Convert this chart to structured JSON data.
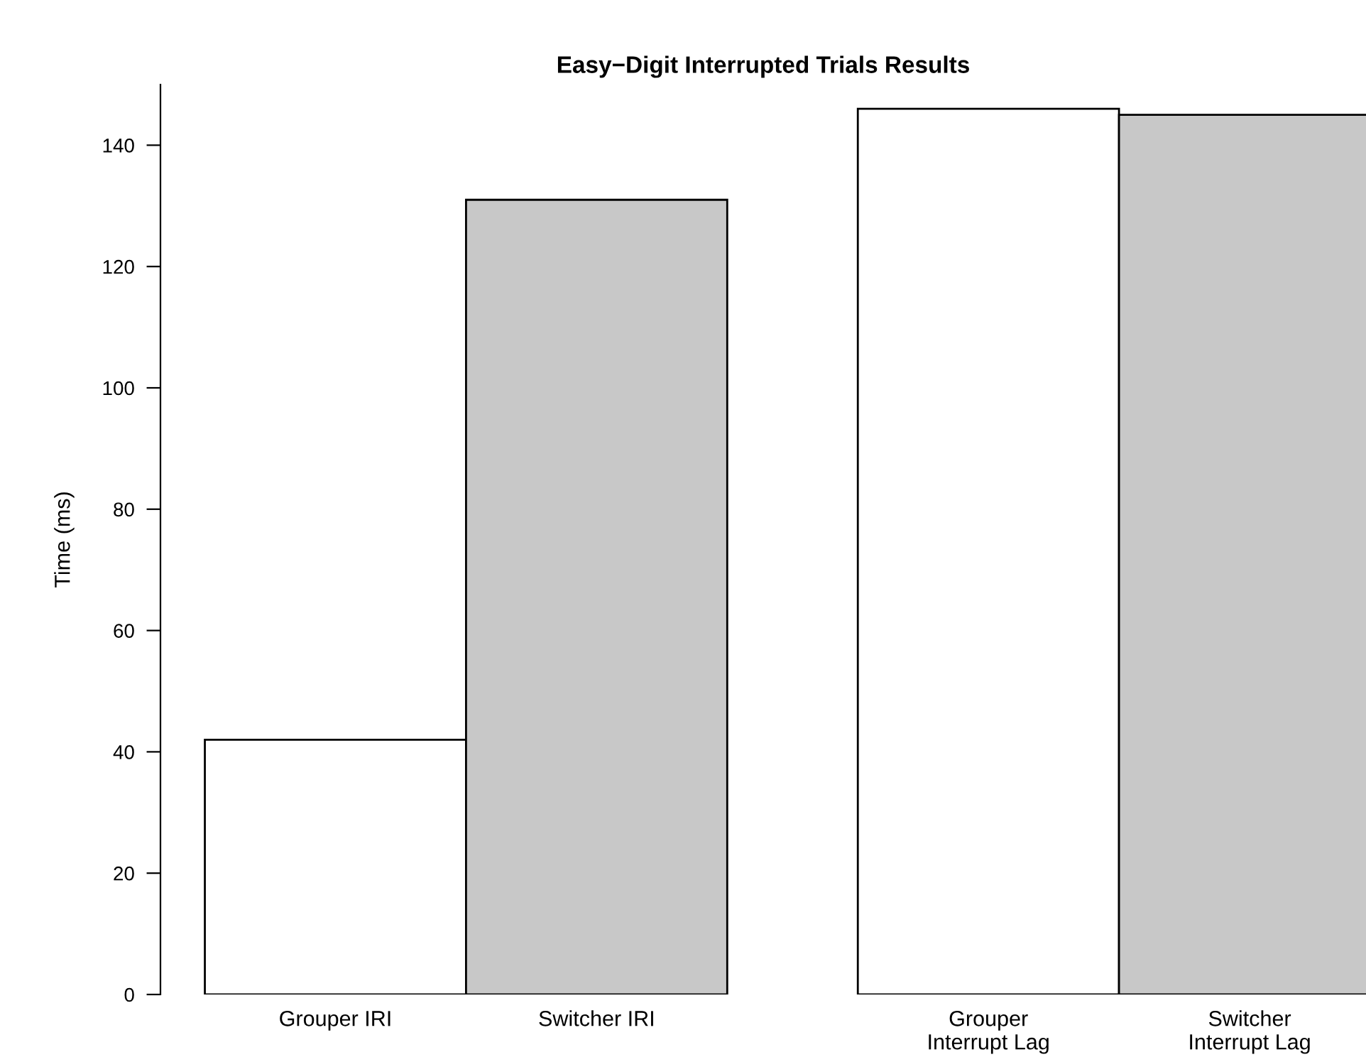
{
  "chart_data": {
    "type": "bar",
    "title": "Easy−Digit Interrupted Trials Results",
    "ylabel": "Time (ms)",
    "categories": [
      "Grouper IRI",
      "Switcher IRI",
      "Grouper\nInterrupt Lag",
      "Switcher\nInterrupt Lag"
    ],
    "values": [
      42,
      131,
      146,
      145
    ],
    "colors": [
      "#ffffff",
      "#c8c8c8",
      "#ffffff",
      "#c8c8c8"
    ],
    "ylim": [
      0,
      150
    ],
    "yticks": [
      0,
      20,
      40,
      60,
      80,
      100,
      120,
      140
    ],
    "grid": false,
    "legend": false
  }
}
